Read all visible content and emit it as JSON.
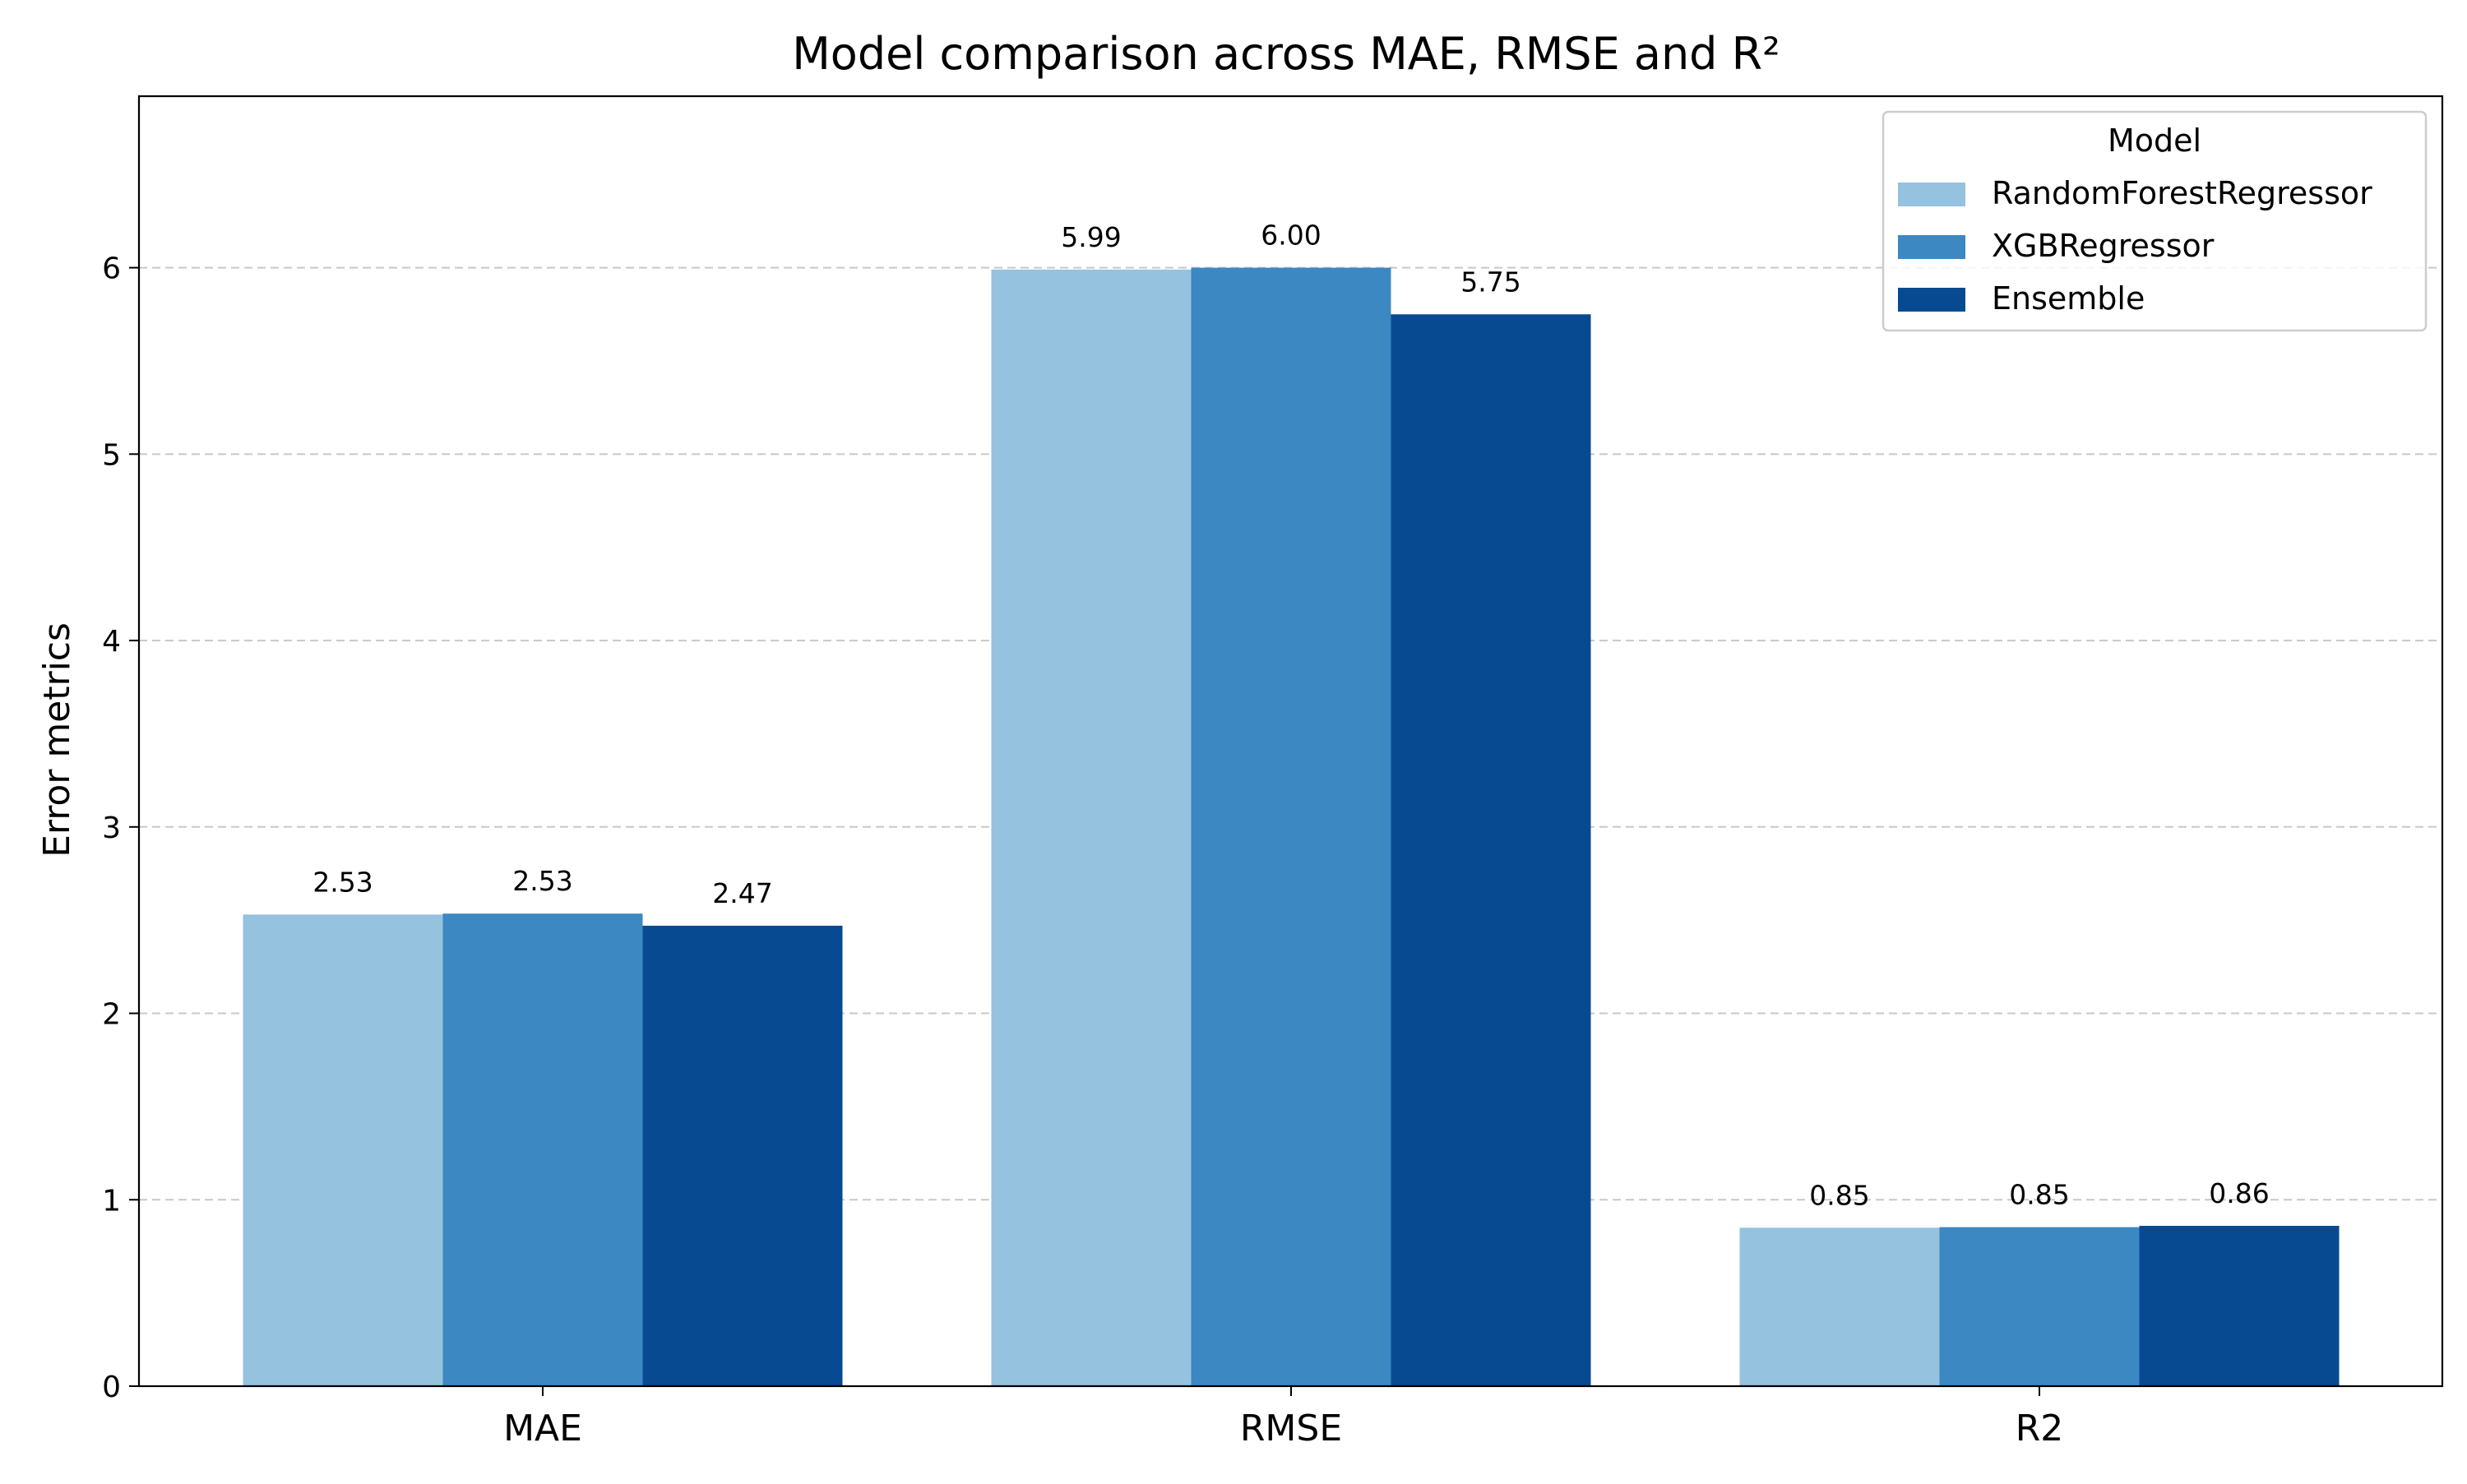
{
  "chart_data": {
    "type": "bar",
    "title": "Model comparison across MAE, RMSE and R²",
    "xlabel": "",
    "ylabel": "Error metrics",
    "categories": [
      "MAE",
      "RMSE",
      "R2"
    ],
    "ylim": [
      0,
      6.92
    ],
    "yticks": [
      0,
      1,
      2,
      3,
      4,
      5,
      6
    ],
    "grid": "y-dashed",
    "legend": {
      "title": "Model",
      "position": "top-right"
    },
    "series": [
      {
        "name": "RandomForestRegressor",
        "color": "#95c2df",
        "values": [
          2.53,
          5.99,
          0.85
        ],
        "labels": [
          "2.53",
          "5.99",
          "0.85"
        ]
      },
      {
        "name": "XGBRegressor",
        "color": "#3b88c2",
        "values": [
          2.535,
          6.0,
          0.853
        ],
        "labels": [
          "2.53",
          "6.00",
          "0.85"
        ]
      },
      {
        "name": "Ensemble",
        "color": "#084a91",
        "values": [
          2.47,
          5.75,
          0.86
        ],
        "labels": [
          "2.47",
          "5.75",
          "0.86"
        ]
      }
    ]
  }
}
